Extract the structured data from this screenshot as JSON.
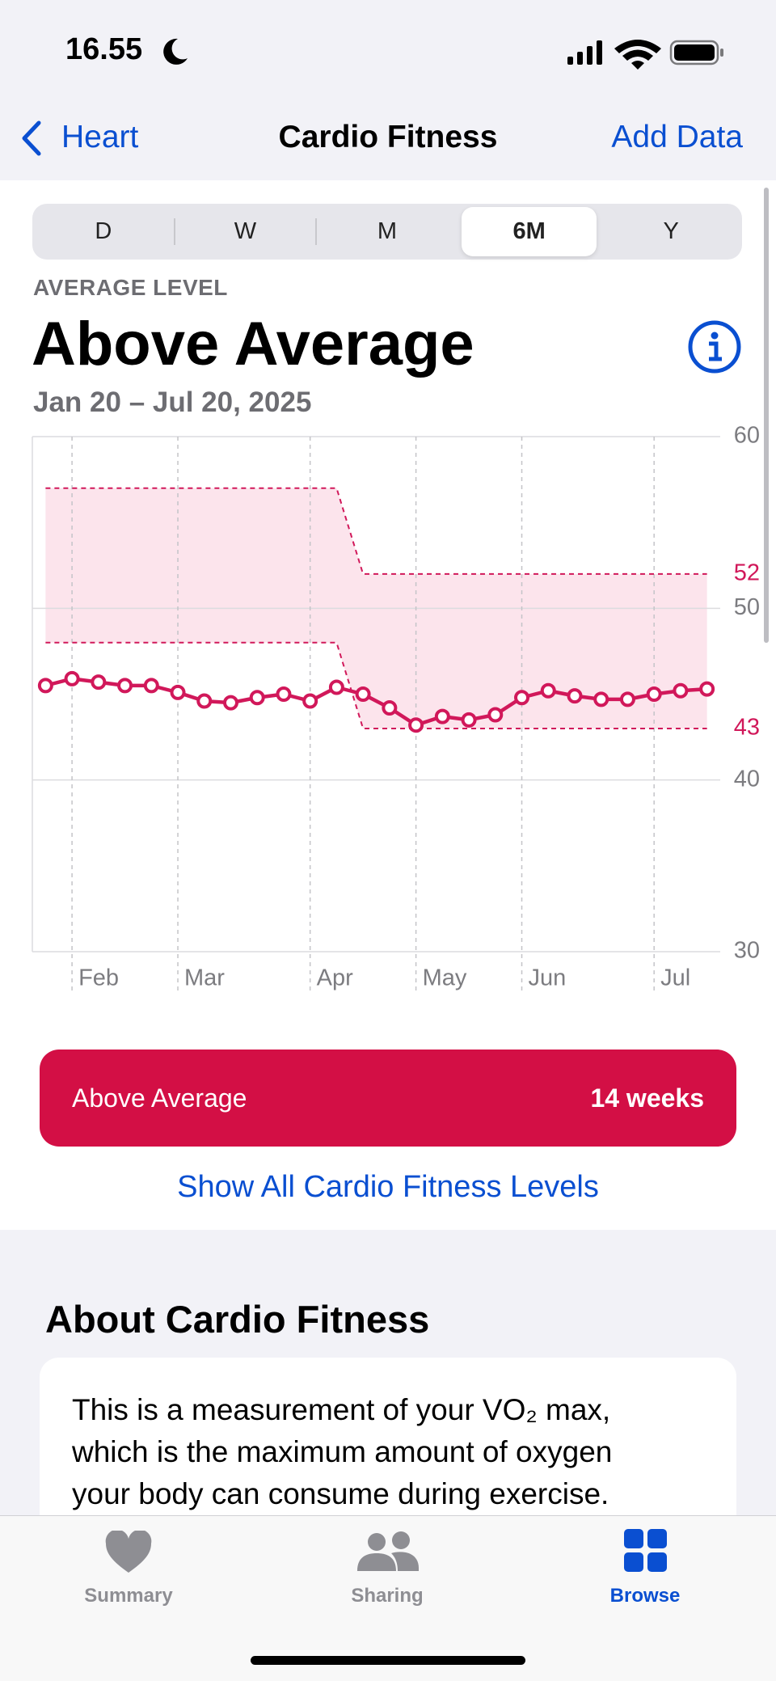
{
  "status_bar": {
    "time": "16.55"
  },
  "nav_bar": {
    "back": "Heart",
    "title": "Cardio Fitness",
    "action": "Add Data"
  },
  "segmented_control": {
    "options": [
      "D",
      "W",
      "M",
      "6M",
      "Y"
    ],
    "selected": "6M"
  },
  "header": {
    "label": "AVERAGE LEVEL",
    "value": "Above Average",
    "date_range": "Jan 20 – Jul 20, 2025"
  },
  "chart_data": {
    "type": "line",
    "categories": [
      null,
      "Feb",
      null,
      null,
      null,
      "Mar",
      null,
      null,
      null,
      null,
      "Apr",
      null,
      null,
      null,
      "May",
      null,
      null,
      null,
      "Jun",
      null,
      null,
      null,
      null,
      "Jul",
      null,
      null
    ],
    "series": [
      {
        "color": "#d1185a",
        "values": [
          45.5,
          45.9,
          45.7,
          45.5,
          45.5,
          45.1,
          44.6,
          44.5,
          44.8,
          45.0,
          44.6,
          45.4,
          45.0,
          44.2,
          43.2,
          43.7,
          43.5,
          43.8,
          44.8,
          45.2,
          44.9,
          44.7,
          44.7,
          45.0,
          45.2,
          45.3
        ]
      }
    ],
    "band": {
      "color": "#fce4ec",
      "line_color": "#d1185a",
      "upper": [
        57,
        57,
        57,
        57,
        57,
        57,
        57,
        57,
        57,
        57,
        57,
        57,
        52,
        52,
        52,
        52,
        52,
        52,
        52,
        52,
        52,
        52,
        52,
        52,
        52,
        52
      ],
      "lower": [
        48,
        48,
        48,
        48,
        48,
        48,
        48,
        48,
        48,
        48,
        48,
        48,
        43,
        43,
        43,
        43,
        43,
        43,
        43,
        43,
        43,
        43,
        43,
        43,
        43,
        43
      ]
    },
    "ylim": [
      30,
      60
    ],
    "yticks": [
      30,
      40,
      50,
      60
    ],
    "grid": true
  },
  "level_banner": {
    "label": "Above Average",
    "duration": "14 weeks"
  },
  "link": "Show All Cardio Fitness Levels",
  "about": {
    "title": "About Cardio Fitness",
    "text": [
      "This is a measurement of your VO₂ max,",
      "which is the maximum amount of oxygen",
      "your body can consume during exercise."
    ]
  },
  "tab_bar": {
    "items": [
      "Summary",
      "Sharing",
      "Browse"
    ],
    "selected": "Browse"
  }
}
